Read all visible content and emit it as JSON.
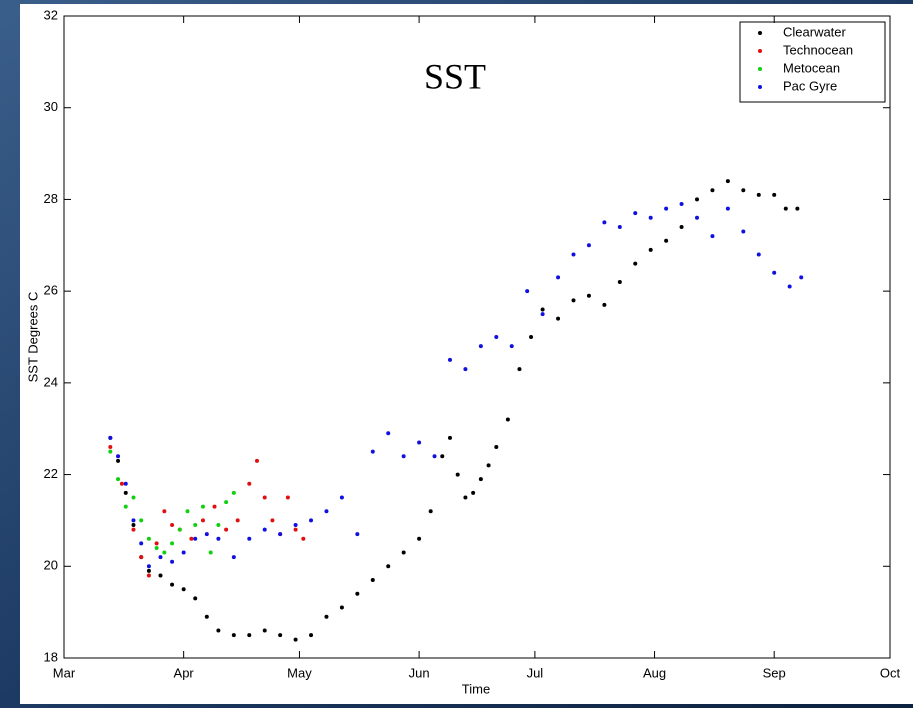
{
  "chart_data": {
    "type": "scatter",
    "title": "SST",
    "x_label": "Time",
    "y_label": "SST Degrees C",
    "xlim": [
      0,
      214
    ],
    "xticks": [
      {
        "value": 0,
        "label": "Mar"
      },
      {
        "value": 31,
        "label": "Apr"
      },
      {
        "value": 61,
        "label": "May"
      },
      {
        "value": 92,
        "label": "Jun"
      },
      {
        "value": 122,
        "label": "Jul"
      },
      {
        "value": 153,
        "label": "Aug"
      },
      {
        "value": 184,
        "label": "Sep"
      },
      {
        "value": 214,
        "label": "Oct"
      }
    ],
    "ylim": [
      18,
      32
    ],
    "yticks": [
      18,
      20,
      22,
      24,
      26,
      28,
      30,
      32
    ],
    "legend": "upper-right",
    "series": [
      {
        "name": "Clearwater",
        "color": "#000000",
        "x": [
          12,
          14,
          16,
          18,
          20,
          22,
          25,
          28,
          31,
          34,
          37,
          40,
          44,
          48,
          52,
          56,
          60,
          64,
          68,
          72,
          76,
          80,
          84,
          88,
          92,
          95,
          98,
          100,
          102,
          104,
          106,
          108,
          110,
          112,
          115,
          118,
          121,
          124,
          128,
          132,
          136,
          140,
          144,
          148,
          152,
          156,
          160,
          164,
          168,
          172,
          176,
          180,
          184,
          187,
          190
        ],
        "values": [
          22.8,
          22.3,
          21.6,
          20.9,
          20.2,
          19.9,
          19.8,
          19.6,
          19.5,
          19.3,
          18.9,
          18.6,
          18.5,
          18.5,
          18.6,
          18.5,
          18.4,
          18.5,
          18.9,
          19.1,
          19.4,
          19.7,
          20.0,
          20.3,
          20.6,
          21.2,
          22.4,
          22.8,
          22.0,
          21.5,
          21.6,
          21.9,
          22.2,
          22.6,
          23.2,
          24.3,
          25.0,
          25.6,
          25.4,
          25.8,
          25.9,
          25.7,
          26.2,
          26.6,
          26.9,
          27.1,
          27.4,
          28.0,
          28.2,
          28.4,
          28.2,
          28.1,
          28.1,
          27.8,
          27.8
        ]
      },
      {
        "name": "Technocean",
        "color": "#e01010",
        "x": [
          12,
          15,
          18,
          20,
          22,
          24,
          26,
          28,
          30,
          33,
          36,
          39,
          42,
          45,
          48,
          50,
          52,
          54,
          56,
          58,
          60,
          62
        ],
        "values": [
          22.6,
          21.8,
          20.8,
          20.2,
          19.8,
          20.5,
          21.2,
          20.9,
          20.8,
          20.6,
          21.0,
          21.3,
          20.8,
          21.0,
          21.8,
          22.3,
          21.5,
          21.0,
          20.7,
          21.5,
          20.8,
          20.6
        ]
      },
      {
        "name": "Metocean",
        "color": "#10d010",
        "x": [
          12,
          14,
          16,
          18,
          20,
          22,
          24,
          26,
          28,
          30,
          32,
          34,
          36,
          38,
          40,
          42,
          44
        ],
        "values": [
          22.5,
          21.9,
          21.3,
          21.5,
          21.0,
          20.6,
          20.4,
          20.3,
          20.5,
          20.8,
          21.2,
          20.9,
          21.3,
          20.3,
          20.9,
          21.4,
          21.6
        ]
      },
      {
        "name": "Pac Gyre",
        "color": "#1010e0",
        "x": [
          12,
          14,
          16,
          18,
          20,
          22,
          25,
          28,
          31,
          34,
          37,
          40,
          44,
          48,
          52,
          56,
          60,
          64,
          68,
          72,
          76,
          80,
          84,
          88,
          92,
          96,
          100,
          104,
          108,
          112,
          116,
          120,
          124,
          128,
          132,
          136,
          140,
          144,
          148,
          152,
          156,
          160,
          164,
          168,
          172,
          176,
          180,
          184,
          188,
          191
        ],
        "values": [
          22.8,
          22.4,
          21.8,
          21.0,
          20.5,
          20.0,
          20.2,
          20.1,
          20.3,
          20.6,
          20.7,
          20.6,
          20.2,
          20.6,
          20.8,
          20.7,
          20.9,
          21.0,
          21.2,
          21.5,
          20.7,
          22.5,
          22.9,
          22.4,
          22.7,
          22.4,
          24.5,
          24.3,
          24.8,
          25.0,
          24.8,
          26.0,
          25.5,
          26.3,
          26.8,
          27.0,
          27.5,
          27.4,
          27.7,
          27.6,
          27.8,
          27.9,
          27.6,
          27.2,
          27.8,
          27.3,
          26.8,
          26.4,
          26.1,
          26.3
        ]
      }
    ]
  }
}
